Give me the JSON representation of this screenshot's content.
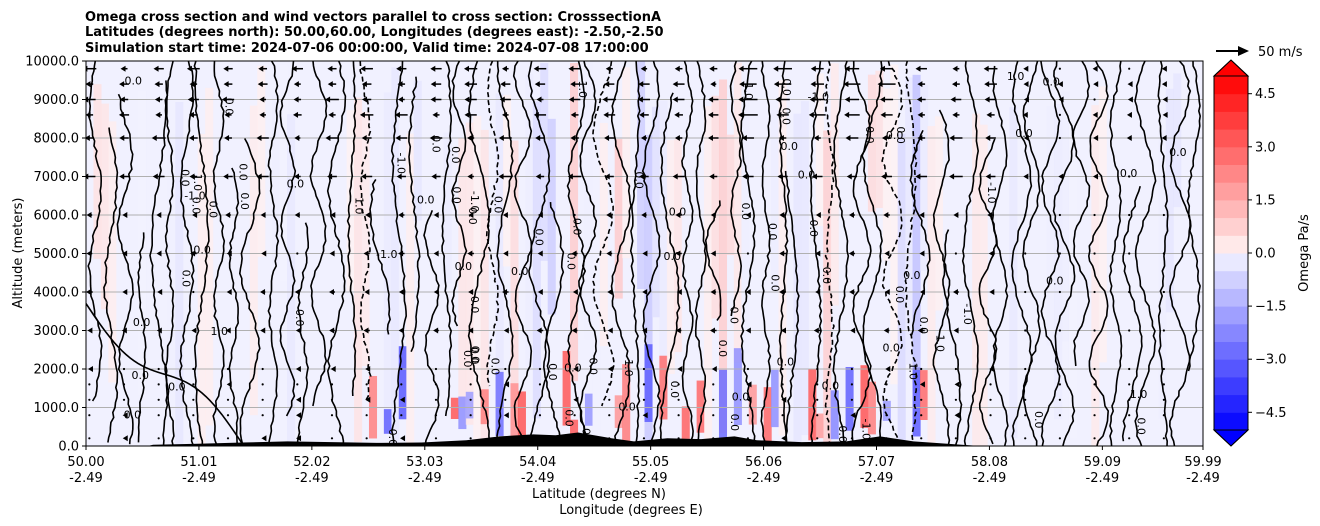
{
  "chart_data": {
    "type": "heatmap",
    "title_lines": [
      "Omega cross section and wind vectors parallel to cross section: CrosssectionA",
      "Latitudes (degrees north): 50.00,60.00, Longitudes (degrees east): -2.50,-2.50",
      "Simulation start time: 2024-07-06 00:00:00, Valid time: 2024-07-08 17:00:00"
    ],
    "ylabel": "Altitude (meters)",
    "xlabel_lines": [
      "Latitude (degrees N)",
      "Longitude (degrees E)"
    ],
    "ylim": [
      0,
      10000
    ],
    "y_ticks": [
      {
        "value": 0,
        "label": "0.0"
      },
      {
        "value": 1000,
        "label": "1000.0"
      },
      {
        "value": 2000,
        "label": "2000.0"
      },
      {
        "value": 3000,
        "label": "3000.0"
      },
      {
        "value": 4000,
        "label": "4000.0"
      },
      {
        "value": 5000,
        "label": "5000.0"
      },
      {
        "value": 6000,
        "label": "6000.0"
      },
      {
        "value": 7000,
        "label": "7000.0"
      },
      {
        "value": 8000,
        "label": "8000.0"
      },
      {
        "value": 9000,
        "label": "9000.0"
      },
      {
        "value": 10000,
        "label": "10000.0"
      }
    ],
    "xlim": [
      50.0,
      59.99
    ],
    "x_ticks": [
      {
        "value": 50.0,
        "lat": "50.00",
        "lon": "-2.49"
      },
      {
        "value": 51.01,
        "lat": "51.01",
        "lon": "-2.49"
      },
      {
        "value": 52.02,
        "lat": "52.02",
        "lon": "-2.49"
      },
      {
        "value": 53.03,
        "lat": "53.03",
        "lon": "-2.49"
      },
      {
        "value": 54.04,
        "lat": "54.04",
        "lon": "-2.49"
      },
      {
        "value": 55.05,
        "lat": "55.05",
        "lon": "-2.49"
      },
      {
        "value": 56.06,
        "lat": "56.06",
        "lon": "-2.49"
      },
      {
        "value": 57.07,
        "lat": "57.07",
        "lon": "-2.49"
      },
      {
        "value": 58.08,
        "lat": "58.08",
        "lon": "-2.49"
      },
      {
        "value": 59.09,
        "lat": "59.09",
        "lon": "-2.49"
      },
      {
        "value": 59.99,
        "lat": "59.99",
        "lon": "-2.49"
      }
    ],
    "grid": "horizontal",
    "colorbar": {
      "label": "Omega Pa/s",
      "range": [
        -5.0,
        5.0
      ],
      "extend": "both",
      "ticks": [
        {
          "value": 4.5,
          "label": "4.5"
        },
        {
          "value": 3.0,
          "label": "3.0"
        },
        {
          "value": 1.5,
          "label": "1.5"
        },
        {
          "value": 0.0,
          "label": "0.0"
        },
        {
          "value": -1.5,
          "label": "−1.5"
        },
        {
          "value": -3.0,
          "label": "−3.0"
        },
        {
          "value": -4.5,
          "label": "−4.5"
        }
      ]
    },
    "quiver_key": {
      "label": "50 m/s",
      "magnitude": 50
    },
    "contour_levels": [
      -1.0,
      0.0,
      1.0
    ],
    "contour_label_samples": [
      "0.0",
      "1.0",
      "-1.0"
    ],
    "terrain_heights_m": [
      {
        "lat": 50.6,
        "h": 30
      },
      {
        "lat": 51.0,
        "h": 60
      },
      {
        "lat": 51.4,
        "h": 90
      },
      {
        "lat": 51.8,
        "h": 120
      },
      {
        "lat": 52.2,
        "h": 100
      },
      {
        "lat": 52.6,
        "h": 80
      },
      {
        "lat": 53.0,
        "h": 90
      },
      {
        "lat": 53.4,
        "h": 150
      },
      {
        "lat": 53.7,
        "h": 250
      },
      {
        "lat": 54.0,
        "h": 300
      },
      {
        "lat": 54.2,
        "h": 280
      },
      {
        "lat": 54.4,
        "h": 350
      },
      {
        "lat": 54.7,
        "h": 200
      },
      {
        "lat": 54.9,
        "h": 120
      },
      {
        "lat": 55.2,
        "h": 200
      },
      {
        "lat": 55.5,
        "h": 180
      },
      {
        "lat": 55.8,
        "h": 250
      },
      {
        "lat": 56.0,
        "h": 150
      },
      {
        "lat": 56.4,
        "h": 100
      },
      {
        "lat": 56.8,
        "h": 120
      },
      {
        "lat": 57.1,
        "h": 250
      },
      {
        "lat": 57.4,
        "h": 120
      },
      {
        "lat": 57.8,
        "h": 40
      }
    ],
    "colors": {
      "pos": "#ff2020",
      "neg": "#2020ff",
      "contour": "#000000",
      "terrain": "#000000",
      "grid": "#b0b0b0"
    }
  }
}
